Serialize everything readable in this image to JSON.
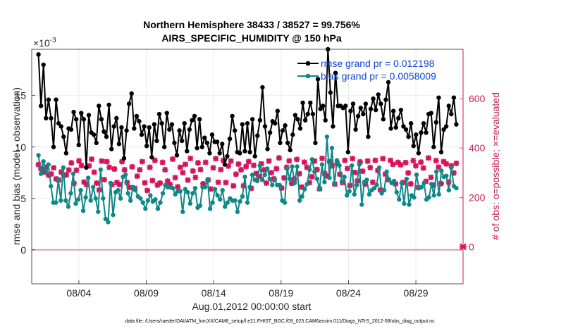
{
  "chart_data": {
    "type": "line",
    "title_line1": "Northern Hemisphere 38433 / 38527 = 99.756%",
    "title_line2": "AIRS_SPECIFIC_HUMIDITY @ 150 hPa",
    "xlabel": "Aug.01,2012 00:00:00 start",
    "ylabel_left": "rmse and bias (model - observation)",
    "ylabel_right": "# of obs: o=possible; ×=evaluated",
    "y_exponent_label": "×10",
    "y_exponent_power": "-3",
    "footer": "data file: /Users/raeder/DAI/ATM_forcXX/CAM6_setup/f.e21.FHIST_BGC.f09_025.CAM6assim.011/Diags_NTrS_2012-08/obs_diag_output.nc",
    "x_range": [
      0.5,
      32.5
    ],
    "x_ticks": [
      4,
      9,
      14,
      19,
      24,
      29
    ],
    "x_tick_labels": [
      "08/04",
      "08/09",
      "08/14",
      "08/19",
      "08/24",
      "08/29"
    ],
    "ylim_left": [
      -3.3,
      19.5
    ],
    "y_ticks_left": [
      0,
      5,
      10,
      15
    ],
    "y_tick_labels_left": [
      "0",
      "5",
      "10",
      "15"
    ],
    "ylim_right": [
      -150,
      800
    ],
    "y_ticks_right": [
      0,
      200,
      400,
      600
    ],
    "y_tick_labels_right": [
      "0",
      "200",
      "400",
      "600"
    ],
    "colors": {
      "rmse": "#000000",
      "bias": "#0f8787",
      "obs": "#d4145a",
      "zero_line": "#d9a0ae"
    },
    "series": [
      {
        "name": "rmse grand pr = 0.012198",
        "axis": "left",
        "values": [
          19.0,
          14.0,
          18.0,
          12.8,
          14.6,
          12.8,
          10.0,
          14.6,
          12.3,
          12.0,
          11.0,
          9.4,
          11.8,
          11.7,
          13.4,
          12.7,
          10.2,
          13.3,
          12.7,
          8.0,
          13.1,
          11.4,
          11.2,
          10.4,
          14.0,
          12.7,
          11.5,
          11.0,
          14.1,
          9.8,
          12.0,
          12.8,
          10.3,
          11.9,
          8.9,
          11.6,
          14.2,
          15.2,
          11.8,
          13.0,
          12.5,
          11.2,
          12.0,
          10.1,
          11.9,
          9.0,
          12.2,
          10.6,
          13.2,
          12.3,
          10.0,
          13.3,
          11.7,
          12.2,
          10.4,
          9.2,
          11.6,
          10.6,
          12.3,
          9.6,
          11.7,
          12.6,
          13.0,
          9.9,
          12.7,
          10.0,
          10.9,
          10.4,
          9.4,
          11.2,
          10.5,
          10.5,
          9.4,
          10.3,
          8.3,
          9.1,
          10.8,
          13.0,
          11.6,
          9.5,
          9.4,
          12.2,
          9.6,
          12.3,
          9.5,
          12.7,
          9.1,
          11.1,
          12.6,
          15.8,
          12.0,
          9.8,
          11.4,
          12.5,
          12.3,
          13.5,
          10.4,
          11.6,
          12.1,
          10.4,
          9.7,
          11.2,
          13.1,
          12.7,
          11.8,
          14.3,
          12.6,
          13.2,
          14.3,
          13.2,
          10.4,
          16.6,
          13.7,
          14.0,
          12.6,
          19.5,
          15.3,
          12.0,
          17.2,
          14.0,
          14.0,
          13.8,
          14.0,
          9.5,
          13.5,
          14.2,
          11.7,
          13.0,
          13.8,
          13.2,
          14.2,
          11.0,
          13.7,
          14.7,
          13.6,
          15.1,
          14.2,
          12.7,
          14.6,
          16.3,
          11.8,
          13.5,
          11.9,
          12.8,
          13.6,
          12.0,
          11.7,
          11.0,
          12.3,
          10.1,
          11.2,
          9.4,
          11.4,
          12.3,
          11.4,
          13.2,
          13.3,
          10.0,
          12.4,
          14.8,
          9.5,
          11.7,
          12.0,
          14.0,
          13.2,
          14.8,
          12.2
        ]
      },
      {
        "name": "bias grand pr = 0.0058009",
        "axis": "left",
        "values": [
          9.2,
          7.4,
          8.6,
          7.6,
          8.3,
          6.2,
          4.6,
          4.6,
          6.8,
          4.8,
          8.0,
          4.8,
          4.2,
          5.5,
          7.4,
          4.5,
          4.9,
          5.8,
          3.8,
          5.1,
          7.0,
          4.8,
          6.1,
          5.0,
          3.7,
          7.8,
          5.0,
          3.0,
          2.7,
          6.5,
          3.4,
          5.6,
          5.8,
          5.0,
          7.1,
          7.3,
          5.5,
          4.8,
          6.1,
          5.8,
          5.2,
          5.0,
          4.6,
          4.0,
          4.8,
          5.3,
          4.7,
          4.9,
          4.0,
          4.6,
          5.5,
          6.3,
          6.1,
          6.1,
          6.0,
          5.4,
          5.7,
          5.7,
          3.7,
          5.9,
          5.6,
          4.5,
          5.5,
          6.0,
          4.1,
          4.3,
          6.1,
          6.1,
          6.8,
          4.0,
          4.6,
          5.9,
          5.3,
          4.9,
          5.8,
          4.2,
          4.6,
          5.0,
          4.8,
          4.8,
          3.7,
          4.7,
          5.2,
          7.1,
          4.6,
          6.1,
          7.3,
          6.8,
          6.7,
          8.2,
          6.8,
          7.3,
          7.9,
          6.9,
          6.3,
          6.8,
          6.3,
          6.3,
          4.8,
          4.6,
          7.9,
          6.9,
          8.1,
          6.5,
          8.1,
          4.8,
          5.2,
          5.9,
          6.4,
          7.8,
          8.8,
          7.6,
          6.9,
          5.9,
          8.3,
          6.6,
          11.0,
          7.0,
          9.9,
          6.4,
          8.7,
          8.2,
          6.6,
          7.1,
          5.3,
          5.7,
          8.2,
          5.4,
          6.3,
          8.3,
          4.4,
          6.6,
          6.8,
          5.4,
          5.8,
          6.0,
          6.3,
          8.0,
          5.5,
          5.8,
          7.6,
          6.8,
          6.5,
          6.7,
          5.6,
          4.9,
          6.5,
          4.5,
          6.9,
          4.4,
          5.3,
          5.1,
          7.3,
          6.0,
          6.1,
          6.5,
          4.9,
          5.1,
          6.4,
          5.3,
          7.6,
          5.4,
          7.7,
          7.1,
          7.2,
          5.8,
          8.0,
          6.2,
          6.0
        ]
      },
      {
        "name": "# of obs",
        "axis": "right",
        "values": [
          333,
          316,
          302,
          322,
          290,
          295,
          320,
          275,
          270,
          303,
          290,
          291,
          311,
          340,
          257,
          310,
          348,
          329,
          262,
          252,
          328,
          355,
          302,
          258,
          230,
          347,
          272,
          345,
          322,
          252,
          315,
          260,
          252,
          345,
          312,
          260,
          240,
          324,
          237,
          286,
          312,
          345,
          259,
          228,
          322,
          268,
          350,
          250,
          258,
          342,
          312,
          266,
          252,
          355,
          280,
          243,
          322,
          300,
          334,
          270,
          358,
          307,
          281,
          340,
          313,
          255,
          342,
          271,
          234,
          320,
          357,
          261,
          313,
          349,
          260,
          327,
          347,
          247,
          294,
          335,
          312,
          247,
          325,
          345,
          237,
          330,
          297,
          285,
          336,
          312,
          258,
          347,
          300,
          275,
          316,
          360,
          238,
          279,
          322,
          348,
          257,
          274,
          354,
          296,
          242,
          343,
          322,
          260,
          284,
          347,
          313,
          235,
          358,
          297,
          287,
          345,
          328,
          254,
          337,
          294,
          260,
          350,
          317,
          248,
          357,
          301,
          267,
          344,
          306,
          254,
          347,
          321,
          261,
          350,
          309,
          230,
          357,
          294,
          272,
          350,
          334,
          255,
          342,
          332,
          260,
          341,
          299,
          255,
          349,
          328,
          240,
          343,
          319,
          265,
          360,
          281,
          250,
          349,
          323,
          256,
          345,
          336,
          262,
          328,
          299,
          338
        ]
      }
    ]
  }
}
